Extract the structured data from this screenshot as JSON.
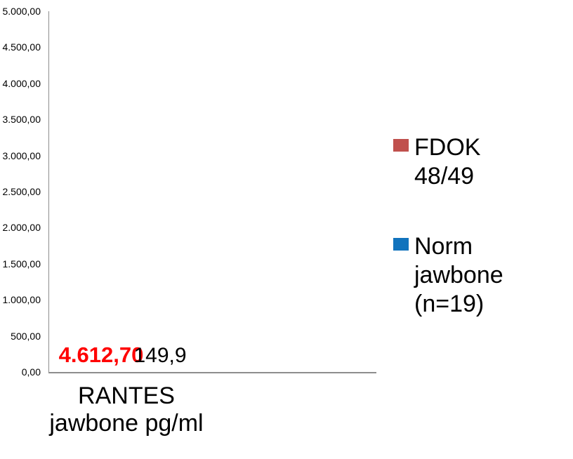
{
  "chart_data": {
    "type": "bar",
    "title": "",
    "categories": [
      "RANTES jawbone pg/ml"
    ],
    "series": [
      {
        "name": "FDOK 48/49",
        "values": [
          4612.7
        ],
        "color": "#C0504D",
        "data_label": "4.612,70",
        "data_label_color": "#FF0000",
        "data_label_bold": true
      },
      {
        "name": "Norm jawbone (n=19)",
        "values": [
          149.9
        ],
        "color": "#1173BD",
        "data_label": "149,9",
        "data_label_color": "#000000",
        "data_label_bold": false
      }
    ],
    "xlabel": "RANTES jawbone pg/ml",
    "ylabel": "",
    "ylim": [
      0,
      5000
    ],
    "y_tick_step": 500,
    "y_ticks": [
      "0,00",
      "500,00",
      "1.000,00",
      "1.500,00",
      "2.000,00",
      "2.500,00",
      "3.000,00",
      "3.500,00",
      "4.000,00",
      "4.500,00",
      "5.000,00"
    ],
    "grid": false,
    "legend_position": "right"
  },
  "x_axis_label": "RANTES\njawbone pg/ml",
  "legend": {
    "items": [
      {
        "label": "FDOK\n48/49",
        "color": "#C0504D"
      },
      {
        "label": "Norm\njawbone\n(n=19)",
        "color": "#1173BD"
      }
    ]
  },
  "colors": {
    "axis": "#8E8E8E",
    "series_fdok": "#C0504D",
    "series_norm": "#1173BD",
    "fdok_label_red": "#FF0000"
  }
}
